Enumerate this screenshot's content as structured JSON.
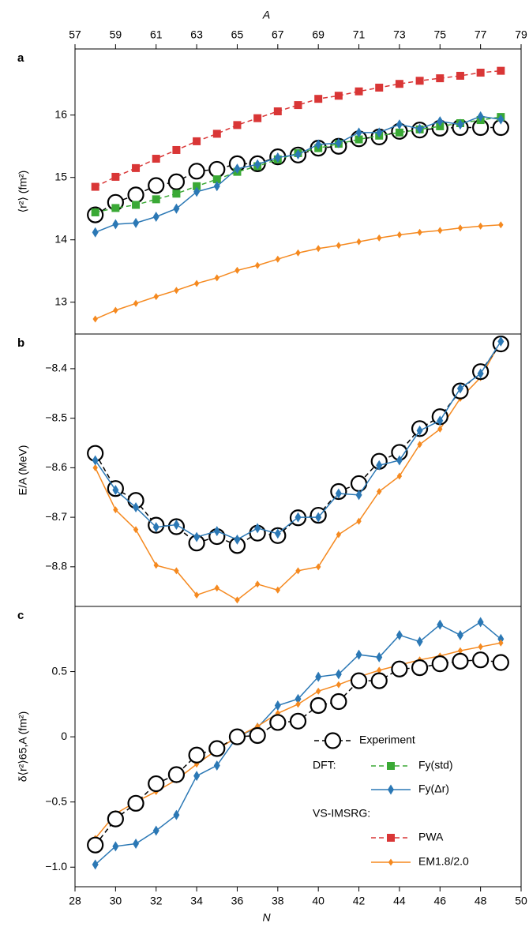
{
  "chart_data": [
    {
      "type": "line",
      "panel_label": "a",
      "ylabel": "⟨r²⟩ (fm²)",
      "x2label": "A",
      "x2lim": [
        57,
        79
      ],
      "x2ticks": [
        57,
        59,
        61,
        63,
        65,
        67,
        69,
        71,
        73,
        75,
        77,
        79
      ],
      "xlim": [
        28,
        50
      ],
      "x": [
        29,
        30,
        31,
        32,
        33,
        34,
        35,
        36,
        37,
        38,
        39,
        40,
        41,
        42,
        43,
        44,
        45,
        46,
        47,
        48,
        49
      ],
      "ylim": [
        12.49,
        17.06
      ],
      "yticks": [
        13,
        14,
        15,
        16
      ],
      "series": [
        {
          "name": "Experiment",
          "color": "#000000",
          "marker": "circle",
          "dashed": true,
          "values": [
            14.4,
            14.6,
            14.72,
            14.87,
            14.93,
            15.1,
            15.13,
            15.22,
            15.22,
            15.33,
            15.36,
            15.47,
            15.5,
            15.62,
            15.65,
            15.74,
            15.76,
            15.79,
            15.8,
            15.8,
            15.8
          ]
        },
        {
          "name": "Fy(std)",
          "color": "#3aa935",
          "marker": "square",
          "dashed": true,
          "values": [
            14.44,
            14.51,
            14.56,
            14.65,
            14.74,
            14.86,
            14.97,
            15.09,
            15.18,
            15.29,
            15.39,
            15.47,
            15.54,
            15.61,
            15.67,
            15.72,
            15.77,
            15.82,
            15.87,
            15.92,
            15.97
          ]
        },
        {
          "name": "Fy(Δr)",
          "color": "#2b78b5",
          "marker": "diamond",
          "values": [
            14.12,
            14.25,
            14.27,
            14.37,
            14.5,
            14.77,
            14.86,
            15.14,
            15.21,
            15.32,
            15.37,
            15.53,
            15.55,
            15.72,
            15.72,
            15.85,
            15.78,
            15.9,
            15.85,
            15.98,
            15.93
          ]
        },
        {
          "name": "PWA",
          "color": "#d93636",
          "marker": "square",
          "dashed": true,
          "values": [
            14.85,
            15.01,
            15.15,
            15.3,
            15.44,
            15.58,
            15.7,
            15.84,
            15.95,
            16.06,
            16.16,
            16.26,
            16.31,
            16.38,
            16.44,
            16.5,
            16.55,
            16.59,
            16.63,
            16.68,
            16.71
          ]
        },
        {
          "name": "EM1.8/2.0",
          "color": "#f5891f",
          "marker": "small-diamond",
          "values": [
            12.73,
            12.87,
            12.98,
            13.09,
            13.19,
            13.3,
            13.39,
            13.51,
            13.59,
            13.69,
            13.79,
            13.86,
            13.91,
            13.97,
            14.03,
            14.08,
            14.12,
            14.15,
            14.19,
            14.22,
            14.24
          ]
        }
      ],
      "legend_headings": [
        "DFT:",
        "VS-IMSRG:"
      ]
    },
    {
      "type": "line",
      "panel_label": "b",
      "ylabel": "E/A (MeV)",
      "xlim": [
        28,
        50
      ],
      "x": [
        29,
        30,
        31,
        32,
        33,
        34,
        35,
        36,
        37,
        38,
        39,
        40,
        41,
        42,
        43,
        44,
        45,
        46,
        47,
        48,
        49
      ],
      "ylim": [
        -8.88,
        -8.33
      ],
      "yticks": [
        {
          "value": -8.4,
          "label": "−8.4"
        },
        {
          "value": -8.5,
          "label": "−8.5"
        },
        {
          "value": -8.6,
          "label": "−8.6"
        },
        {
          "value": -8.7,
          "label": "−8.7"
        },
        {
          "value": -8.8,
          "label": "−8.8"
        }
      ],
      "series": [
        {
          "color": "#f5891f",
          "marker": "small-diamond",
          "values": [
            -8.6,
            -8.685,
            -8.725,
            -8.797,
            -8.808,
            -8.857,
            -8.843,
            -8.867,
            -8.835,
            -8.847,
            -8.808,
            -8.8,
            -8.735,
            -8.708,
            -8.648,
            -8.617,
            -8.553,
            -8.522,
            -8.46,
            -8.418,
            -8.345
          ]
        },
        {
          "color": "#000000",
          "marker": "circle",
          "dashed": true,
          "values": [
            -8.571,
            -8.642,
            -8.666,
            -8.716,
            -8.719,
            -8.752,
            -8.739,
            -8.757,
            -8.732,
            -8.737,
            -8.701,
            -8.696,
            -8.648,
            -8.632,
            -8.587,
            -8.569,
            -8.521,
            -8.497,
            -8.445,
            -8.406,
            -8.35
          ]
        },
        {
          "color": "#2b78b5",
          "marker": "diamond",
          "values": [
            -8.585,
            -8.645,
            -8.68,
            -8.72,
            -8.715,
            -8.74,
            -8.728,
            -8.745,
            -8.722,
            -8.733,
            -8.7,
            -8.7,
            -8.652,
            -8.655,
            -8.595,
            -8.585,
            -8.525,
            -8.505,
            -8.44,
            -8.41,
            -8.345
          ]
        }
      ]
    },
    {
      "type": "line",
      "panel_label": "c",
      "ylabel": "δ⟨r²⟩65,A (fm²)",
      "xlabel": "N",
      "xlim": [
        28,
        50
      ],
      "xticks": [
        28,
        30,
        32,
        34,
        36,
        38,
        40,
        42,
        44,
        46,
        48,
        50
      ],
      "x": [
        29,
        30,
        31,
        32,
        33,
        34,
        35,
        36,
        37,
        38,
        39,
        40,
        41,
        42,
        43,
        44,
        45,
        46,
        47,
        48,
        49
      ],
      "ylim": [
        -1.15,
        1.0
      ],
      "yticks": [
        {
          "value": -1.0,
          "label": "−1.0"
        },
        {
          "value": -0.5,
          "label": "−0.5"
        },
        0,
        0.5
      ],
      "series": [
        {
          "color": "#2b78b5",
          "marker": "diamond",
          "values": [
            -0.98,
            -0.84,
            -0.82,
            -0.72,
            -0.6,
            -0.3,
            -0.22,
            0,
            0.07,
            0.24,
            0.29,
            0.46,
            0.48,
            0.63,
            0.61,
            0.78,
            0.73,
            0.86,
            0.78,
            0.88,
            0.75
          ]
        },
        {
          "color": "#f5891f",
          "marker": "small-diamond",
          "values": [
            -0.78,
            -0.59,
            -0.5,
            -0.42,
            -0.33,
            -0.21,
            -0.1,
            0,
            0.08,
            0.18,
            0.25,
            0.35,
            0.4,
            0.46,
            0.51,
            0.55,
            0.59,
            0.62,
            0.66,
            0.69,
            0.72
          ]
        },
        {
          "color": "#000000",
          "marker": "circle",
          "dashed": true,
          "values": [
            -0.83,
            -0.63,
            -0.51,
            -0.36,
            -0.29,
            -0.14,
            -0.09,
            0,
            0.01,
            0.11,
            0.12,
            0.24,
            0.27,
            0.43,
            0.43,
            0.52,
            0.53,
            0.56,
            0.58,
            0.59,
            0.57
          ]
        }
      ]
    }
  ]
}
